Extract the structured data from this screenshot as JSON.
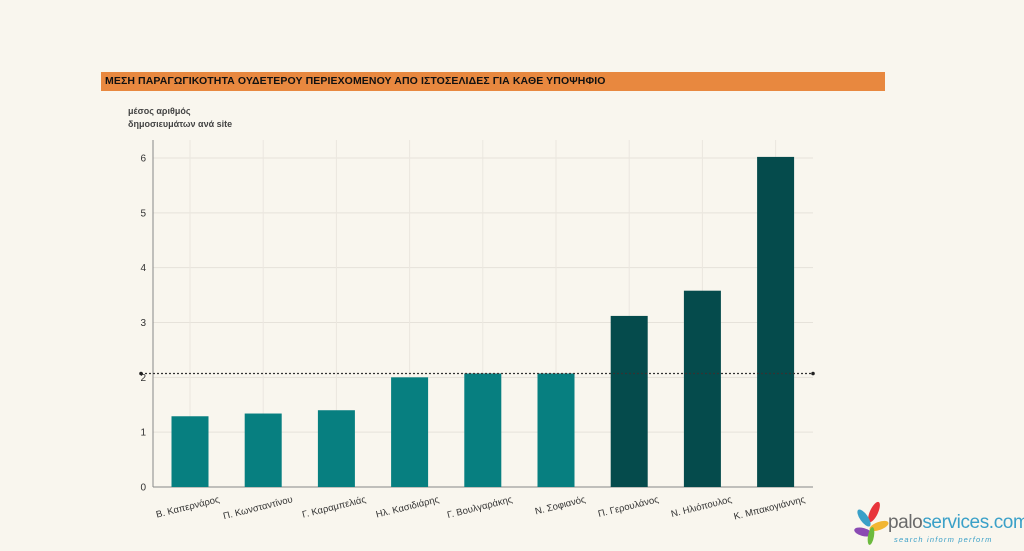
{
  "header": {
    "title": "ΜΕΣΗ ΠΑΡΑΓΩΓΙΚΟΤΗΤΑ ΟΥΔΕΤΕΡΟΥ ΠΕΡΙΕΧΟΜΕΝΟΥ ΑΠΟ ΙΣΤΟΣΕΛΙΔΕΣ ΓΙΑ ΚΑΘΕ ΥΠΟΨΗΦΙΟ"
  },
  "chart_data": {
    "type": "bar",
    "title": "ΜΕΣΗ ΠΑΡΑΓΩΓΙΚΟΤΗΤΑ ΟΥΔΕΤΕΡΟΥ ΠΕΡΙΕΧΟΜΕΝΟΥ ΑΠΟ ΙΣΤΟΣΕΛΙΔΕΣ ΓΙΑ ΚΑΘΕ ΥΠΟΨΗΦΙΟ",
    "ylabel_lines": [
      "μέσος αριθμός",
      "δημοσιευμάτων ανά site"
    ],
    "xlabel": "",
    "ylim": [
      0,
      6
    ],
    "yticks": [
      0,
      1,
      2,
      3,
      4,
      5,
      6
    ],
    "grid": true,
    "categories": [
      "Β. Καπερνάρος",
      "Π. Κωνσταντίνου",
      "Γ. Καραμπελιάς",
      "Ηλ. Κασιδιάρης",
      "Γ. Βουλγαράκης",
      "Ν. Σοφιανός",
      "Π. Γερουλάνος",
      "Ν. Ηλιόπουλος",
      "Κ. Μπακογιάννης"
    ],
    "values": [
      1.29,
      1.34,
      1.4,
      2.0,
      2.07,
      2.07,
      3.12,
      3.58,
      6.02
    ],
    "bar_colors": [
      "#077f80",
      "#077f80",
      "#077f80",
      "#077f80",
      "#077f80",
      "#077f80",
      "#054b4c",
      "#054b4c",
      "#054b4c"
    ],
    "reference_line": {
      "value": 2.07,
      "style": "dotted",
      "color": "#333333"
    }
  },
  "logo": {
    "word_main": "palo",
    "word_accent": "services.com",
    "tagline": "search inform perform"
  }
}
